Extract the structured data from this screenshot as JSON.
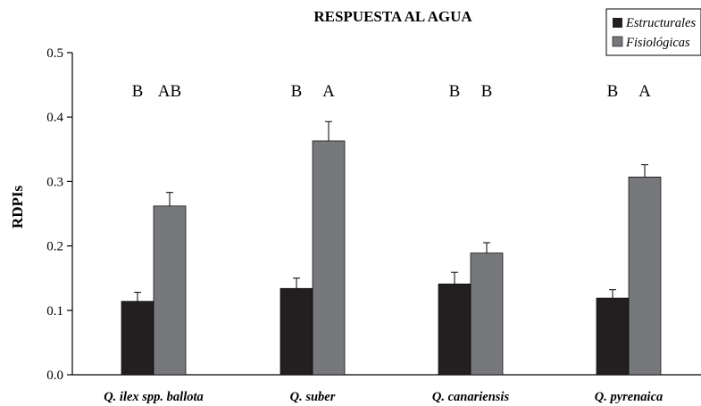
{
  "chart_data": {
    "type": "bar",
    "title": "RESPUESTA AL AGUA",
    "ylabel": "RDPIs",
    "xlabel": "",
    "ylim": [
      0,
      0.5
    ],
    "yticks": [
      "0.0",
      "0.1",
      "0.2",
      "0.3",
      "0.4",
      "0.5"
    ],
    "categories": [
      "Q. ilex spp. ballota",
      "Q. suber",
      "Q. canariensis",
      "Q. pyrenaica"
    ],
    "series": [
      {
        "name": "Estructurales",
        "color": "#231f20",
        "values": [
          0.114,
          0.134,
          0.141,
          0.119
        ],
        "errors": [
          0.014,
          0.016,
          0.018,
          0.013
        ]
      },
      {
        "name": "Fisiológicas",
        "color": "#77787b",
        "values": [
          0.262,
          0.363,
          0.189,
          0.307
        ],
        "errors": [
          0.021,
          0.03,
          0.016,
          0.019
        ]
      }
    ],
    "significance": [
      [
        "B",
        "AB"
      ],
      [
        "B",
        "A"
      ],
      [
        "B",
        "B"
      ],
      [
        "B",
        "A"
      ]
    ],
    "grid": false,
    "legend_position": "top-right"
  }
}
